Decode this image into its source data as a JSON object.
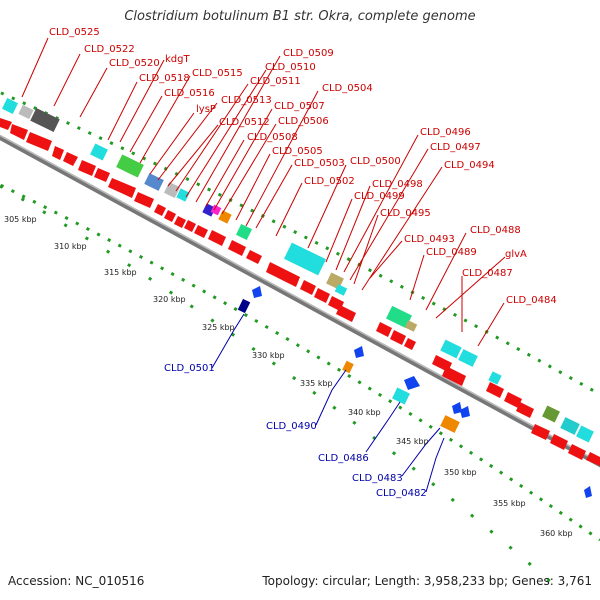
{
  "title": "Clostridium botulinum B1 str. Okra, complete genome",
  "footer": {
    "accession": "Accession: NC_010516",
    "summary": "Topology: circular; Length: 3,958,233 bp; Genes: 3,761"
  },
  "colors": {
    "forward_label": "#cc0000",
    "reverse_label": "#0000aa",
    "backbone": "#888888",
    "ticks": "#229922",
    "red_gene": "#ee1111",
    "blue_gene": "#1144ee",
    "cyan_gene": "#22dddd",
    "green_gene": "#44cc44"
  },
  "scale_labels": [
    "305 kbp",
    "310 kbp",
    "315 kbp",
    "320 kbp",
    "325 kbp",
    "330 kbp",
    "335 kbp",
    "340 kbp",
    "345 kbp",
    "350 kbp",
    "355 kbp",
    "360 kbp"
  ],
  "forward_genes": [
    "CLD_0525",
    "CLD_0522",
    "CLD_0520",
    "kdgT",
    "CLD_0518",
    "CLD_0515",
    "CLD_0516",
    "lysP",
    "CLD_0513",
    "CLD_0512",
    "CLD_0511",
    "CLD_0510",
    "CLD_0509",
    "CLD_0508",
    "CLD_0507",
    "CLD_0506",
    "CLD_0505",
    "CLD_0504",
    "CLD_0503",
    "CLD_0502",
    "CLD_0500",
    "CLD_0499",
    "CLD_0498",
    "CLD_0497",
    "CLD_0496",
    "CLD_0495",
    "CLD_0494",
    "CLD_0493",
    "CLD_0489",
    "CLD_0488",
    "glvA",
    "CLD_0487",
    "CLD_0484"
  ],
  "reverse_genes": [
    "CLD_0501",
    "CLD_0490",
    "CLD_0486",
    "CLD_0483",
    "CLD_0482"
  ]
}
